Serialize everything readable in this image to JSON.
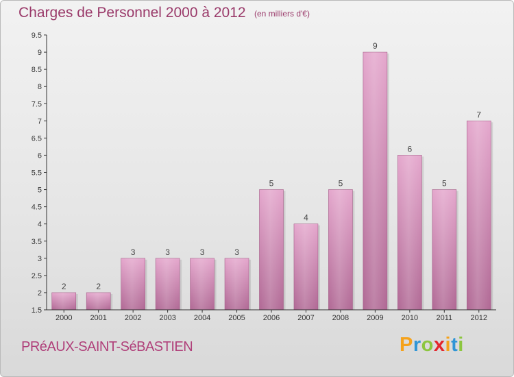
{
  "header": {
    "title": "Charges de Personnel 2000 à 2012",
    "subtitle": "(en milliers d'€)"
  },
  "footer": {
    "commune": "PRéAUX-SAINT-SéBASTIEN",
    "logo": [
      "P",
      "r",
      "o",
      "x",
      "i",
      "t",
      "i"
    ],
    "logo_colors": [
      "#f5a21b",
      "#2f95d6",
      "#8cc63f",
      "#e3262c",
      "#f5a21b",
      "#2f95d6",
      "#8cc63f"
    ]
  },
  "chart_data": {
    "type": "bar",
    "title": "Charges de Personnel 2000 à 2012",
    "subtitle": "(en milliers d'€)",
    "xlabel": "",
    "ylabel": "",
    "categories": [
      "2000",
      "2001",
      "2002",
      "2003",
      "2004",
      "2005",
      "2006",
      "2007",
      "2008",
      "2009",
      "2010",
      "2011",
      "2012"
    ],
    "values": [
      2,
      2,
      3,
      3,
      3,
      3,
      5,
      4,
      5,
      9,
      6,
      5,
      7
    ],
    "data_labels": [
      "2",
      "2",
      "3",
      "3",
      "3",
      "3",
      "5",
      "4",
      "5",
      "9",
      "6",
      "5",
      "7"
    ],
    "ylim": [
      1.5,
      9.5
    ],
    "yticks": [
      1.5,
      2,
      2.5,
      3,
      3.5,
      4,
      4.5,
      5,
      5.5,
      6,
      6.5,
      7,
      7.5,
      8,
      8.5,
      9,
      9.5
    ],
    "ytick_labels": [
      "1.5",
      "2",
      "2.5",
      "3",
      "3.5",
      "4",
      "4.5",
      "5",
      "5.5",
      "6",
      "6.5",
      "7",
      "7.5",
      "8",
      "8.5",
      "9",
      "9.5"
    ],
    "grid": false,
    "bar_color": "#c97aa8"
  }
}
